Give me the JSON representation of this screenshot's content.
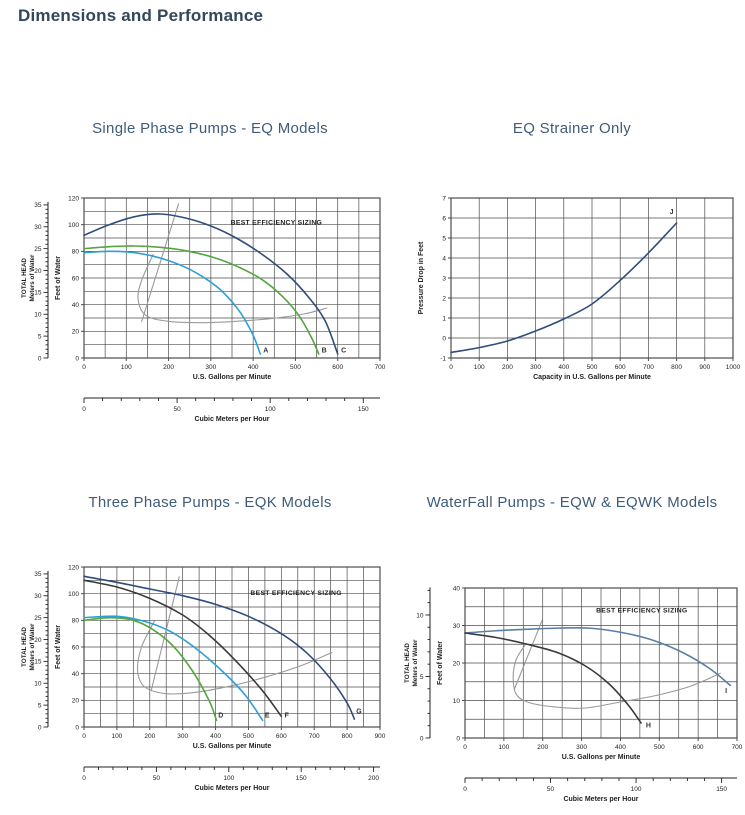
{
  "header": {
    "title": "Dimensions and Performance"
  },
  "colors": {
    "heading": "#33475b",
    "chart_title": "#3f5c7a",
    "grid": "#4d4d4d",
    "axis_text": "#222222",
    "navy": "#2f4d7c",
    "green": "#54a53f",
    "cyan": "#2e9fd4",
    "dark": "#3a3a3a",
    "steel": "#5b7fa6",
    "bep_grey": "#9a9a9a"
  },
  "chart_data": [
    {
      "id": "single-phase-eq",
      "type": "line",
      "title": "Single Phase Pumps - EQ Models",
      "xlabel": "U.S. Gallons per Minute",
      "x2label": "Cubic Meters per Hour",
      "ylabel_outer_line1": "TOTAL HEAD",
      "ylabel_outer_line2": "Meters of Water",
      "ylabel_inner": "Feet of Water",
      "annotation": "BEST EFFICIENCY SIZING",
      "annotation_pos": [
        455,
        100
      ],
      "xlim": [
        0,
        700
      ],
      "xtick_step": 100,
      "xgrid_step": 50,
      "ylim": [
        0,
        120
      ],
      "ytick_step": 20,
      "ygrid_step": 10,
      "meters_max": 35,
      "meters_label_step": 5,
      "x2_label_step": 50,
      "x2_minor_step": 10,
      "series": [
        {
          "name": "C",
          "color_key": "navy",
          "points": [
            [
              0,
              92
            ],
            [
              60,
              100
            ],
            [
              120,
              106
            ],
            [
              180,
              108
            ],
            [
              240,
              105
            ],
            [
              300,
              99
            ],
            [
              360,
              90
            ],
            [
              420,
              78
            ],
            [
              480,
              63
            ],
            [
              530,
              46
            ],
            [
              570,
              28
            ],
            [
              600,
              3
            ]
          ],
          "label_pos": [
            614,
            4
          ]
        },
        {
          "name": "B",
          "color_key": "green",
          "points": [
            [
              0,
              82
            ],
            [
              60,
              83.5
            ],
            [
              120,
              84
            ],
            [
              180,
              83
            ],
            [
              240,
              80.5
            ],
            [
              300,
              76
            ],
            [
              360,
              69
            ],
            [
              420,
              59
            ],
            [
              470,
              46
            ],
            [
              510,
              31
            ],
            [
              540,
              14
            ],
            [
              555,
              3
            ]
          ],
          "label_pos": [
            568,
            4
          ]
        },
        {
          "name": "A",
          "color_key": "cyan",
          "points": [
            [
              0,
              79
            ],
            [
              60,
              80
            ],
            [
              120,
              79
            ],
            [
              180,
              75
            ],
            [
              240,
              68
            ],
            [
              290,
              59
            ],
            [
              330,
              49
            ],
            [
              370,
              34
            ],
            [
              400,
              17
            ],
            [
              417,
              3
            ]
          ],
          "label_pos": [
            430,
            4
          ]
        }
      ],
      "bep_line": [
        [
          136,
          27
        ],
        [
          224,
          116
        ]
      ],
      "bep_curve": [
        [
          164,
          78
        ],
        [
          136,
          58
        ],
        [
          128,
          44
        ],
        [
          146,
          32
        ],
        [
          200,
          27.5
        ],
        [
          280,
          26.5
        ],
        [
          360,
          27.5
        ],
        [
          440,
          29.5
        ],
        [
          520,
          33
        ],
        [
          575,
          37.5
        ]
      ]
    },
    {
      "id": "eq-strainer",
      "type": "line",
      "title": "EQ Strainer Only",
      "xlabel": "Capacity in U.S. Gallons per Minute",
      "ylabel": "Pressure Drop in Feet",
      "xlim": [
        0,
        1000
      ],
      "xtick_step": 100,
      "xgrid_step": 100,
      "ylim": [
        -1,
        7
      ],
      "ytick_step": 1,
      "ygrid_step": 1,
      "series": [
        {
          "name": "J",
          "color_key": "navy",
          "points": [
            [
              0,
              -0.72
            ],
            [
              100,
              -0.48
            ],
            [
              200,
              -0.15
            ],
            [
              300,
              0.35
            ],
            [
              400,
              0.95
            ],
            [
              500,
              1.7
            ],
            [
              600,
              2.88
            ],
            [
              700,
              4.25
            ],
            [
              800,
              5.75
            ]
          ],
          "label_pos": [
            782,
            6.2
          ]
        }
      ]
    },
    {
      "id": "three-phase-eqk",
      "type": "line",
      "title": "Three Phase Pumps - EQK Models",
      "xlabel": "U.S. Gallons per Minute",
      "x2label": "Cubic Meters per Hour",
      "ylabel_outer_line1": "TOTAL HEAD",
      "ylabel_outer_line2": "Meters of Water",
      "ylabel_inner": "Feet of Water",
      "annotation": "BEST EFFICIENCY SIZING",
      "annotation_pos": [
        645,
        99
      ],
      "xlim": [
        0,
        900
      ],
      "xtick_step": 100,
      "xgrid_step": 50,
      "ylim": [
        0,
        120
      ],
      "ytick_step": 20,
      "ygrid_step": 10,
      "meters_max": 35,
      "meters_label_step": 5,
      "x2_label_step": 50,
      "x2_minor_step": 10,
      "series": [
        {
          "name": "G",
          "color_key": "navy",
          "points": [
            [
              0,
              113
            ],
            [
              100,
              108.5
            ],
            [
              200,
              103.5
            ],
            [
              300,
              98.5
            ],
            [
              400,
              92
            ],
            [
              500,
              83
            ],
            [
              600,
              70
            ],
            [
              680,
              55
            ],
            [
              750,
              36
            ],
            [
              800,
              18
            ],
            [
              822,
              6
            ]
          ],
          "label_pos": [
            836,
            10
          ]
        },
        {
          "name": "F",
          "color_key": "dark",
          "points": [
            [
              0,
              110
            ],
            [
              100,
              105
            ],
            [
              200,
              96.5
            ],
            [
              300,
              84
            ],
            [
              380,
              69
            ],
            [
              460,
              50
            ],
            [
              540,
              28
            ],
            [
              600,
              8
            ]
          ],
          "label_pos": [
            616,
            7
          ]
        },
        {
          "name": "E",
          "color_key": "cyan",
          "points": [
            [
              0,
              82
            ],
            [
              100,
              83
            ],
            [
              180,
              79.5
            ],
            [
              260,
              72
            ],
            [
              340,
              59
            ],
            [
              420,
              42
            ],
            [
              490,
              24
            ],
            [
              543,
              5
            ]
          ],
          "label_pos": [
            557,
            7
          ]
        },
        {
          "name": "D",
          "color_key": "green",
          "points": [
            [
              0,
              80
            ],
            [
              80,
              82
            ],
            [
              150,
              80
            ],
            [
              210,
              73
            ],
            [
              270,
              61
            ],
            [
              330,
              42
            ],
            [
              380,
              20
            ],
            [
              403,
              5
            ]
          ],
          "label_pos": [
            416,
            7
          ]
        }
      ],
      "bep_line": [
        [
          204,
          27
        ],
        [
          290,
          113
        ]
      ],
      "bep_curve": [
        [
          215,
          80
        ],
        [
          175,
          60
        ],
        [
          163,
          42
        ],
        [
          185,
          30
        ],
        [
          250,
          25
        ],
        [
          340,
          26
        ],
        [
          450,
          31
        ],
        [
          560,
          38
        ],
        [
          660,
          46
        ],
        [
          755,
          56
        ]
      ]
    },
    {
      "id": "waterfall-eqw",
      "type": "line",
      "title": "WaterFall Pumps - EQW & EQWK Models",
      "xlabel": "U.S. Gallons per Minute",
      "x2label": "Cubic Meters per Hour",
      "ylabel_outer_line1": "TOTAL HEAD",
      "ylabel_outer_line2": "Meters of Water",
      "ylabel_inner": "Feet of Water",
      "annotation": "BEST EFFICIENCY SIZING",
      "annotation_pos": [
        455,
        33.5
      ],
      "xlim": [
        0,
        700
      ],
      "xtick_step": 100,
      "xgrid_step": 50,
      "ylim": [
        0,
        40
      ],
      "ytick_step": 10,
      "ygrid_step": 5,
      "meters_max": 12,
      "meters_label_step": 5,
      "x2_label_step": 50,
      "x2_minor_step": 10,
      "series": [
        {
          "name": "I",
          "color_key": "steel",
          "points": [
            [
              0,
              28
            ],
            [
              80,
              28.6
            ],
            [
              160,
              29
            ],
            [
              240,
              29.3
            ],
            [
              320,
              29.3
            ],
            [
              400,
              28.2
            ],
            [
              480,
              26.2
            ],
            [
              560,
              22.8
            ],
            [
              630,
              18.5
            ],
            [
              683,
              14
            ]
          ],
          "label_pos": [
            672,
            12
          ]
        },
        {
          "name": "H",
          "color_key": "dark",
          "points": [
            [
              0,
              28
            ],
            [
              80,
              26.8
            ],
            [
              160,
              25
            ],
            [
              240,
              22.7
            ],
            [
              310,
              19.2
            ],
            [
              370,
              14.5
            ],
            [
              420,
              8.8
            ],
            [
              453,
              4
            ]
          ],
          "label_pos": [
            472,
            2.8
          ]
        }
      ],
      "bep_line": [
        [
          127,
          13
        ],
        [
          199,
          31.5
        ]
      ],
      "bep_curve": [
        [
          158,
          25.3
        ],
        [
          132,
          21
        ],
        [
          124,
          16
        ],
        [
          133,
          11.5
        ],
        [
          170,
          9.3
        ],
        [
          240,
          8.2
        ],
        [
          310,
          8
        ],
        [
          400,
          9.6
        ],
        [
          490,
          11.3
        ],
        [
          580,
          13.8
        ],
        [
          658,
          17.3
        ]
      ]
    }
  ]
}
